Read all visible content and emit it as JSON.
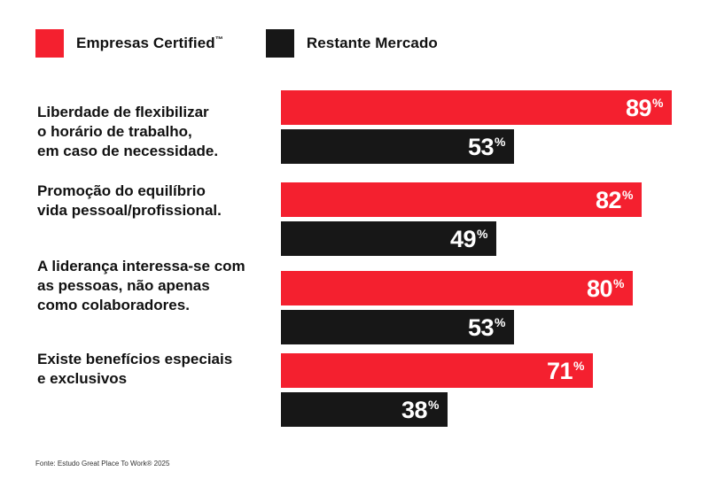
{
  "legend": {
    "series_a": "Empresas Certified",
    "series_a_mark": "™",
    "series_b": "Restante Mercado"
  },
  "colors": {
    "series_a": "#f4202f",
    "series_b": "#171717"
  },
  "source": "Fonte: Estudo Great Place To Work® 2025",
  "chart_data": {
    "type": "bar",
    "orientation": "horizontal",
    "categories": [
      "Liberdade de flexibilizar\no horário de trabalho,\nem caso de necessidade.",
      "Promoção do equilíbrio\nvida pessoal/profissional.",
      "A liderança interessa-se com\nas pessoas, não apenas\ncomo colaboradores.",
      "Existe benefícios especiais\ne exclusivos"
    ],
    "series": [
      {
        "name": "Empresas Certified™",
        "values": [
          89,
          82,
          80,
          71
        ]
      },
      {
        "name": "Restante Mercado",
        "values": [
          53,
          49,
          53,
          38
        ]
      }
    ],
    "value_suffix": "%",
    "xlim": [
      0,
      100
    ],
    "grid": false,
    "legend_position": "top-left"
  }
}
